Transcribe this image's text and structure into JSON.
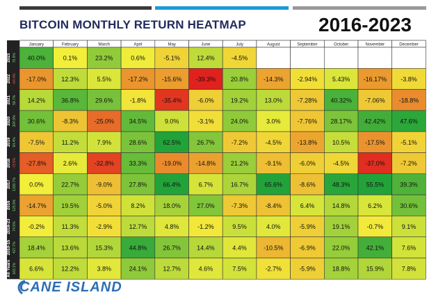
{
  "header": {
    "title": "BITCOIN MONTHLY RETURN HEATMAP",
    "years": "2016-2023"
  },
  "footer": {
    "brand": "CANE ISLAND"
  },
  "colors": {
    "bar_left": "#3a3a3a",
    "bar_mid": "#1f9ad6",
    "bar_right": "#9a9a9a",
    "cell_empty": "#ffffff"
  },
  "chart_data": {
    "type": "heatmap",
    "title": "BITCOIN MONTHLY RETURN HEATMAP",
    "subtitle": "2016-2023",
    "columns": [
      "January",
      "February",
      "March",
      "April",
      "May",
      "June",
      "July",
      "August",
      "September",
      "October",
      "November",
      "December"
    ],
    "rows": [
      {
        "label": "2023",
        "total": "76.9%",
        "values": [
          "40.0%",
          "0.1%",
          "23.2%",
          "0.6%",
          "-5.1%",
          "12.4%",
          "-4.5%",
          "",
          "",
          "",
          "",
          ""
        ],
        "nums": [
          40.0,
          0.1,
          23.2,
          0.6,
          -5.1,
          12.4,
          -4.5,
          null,
          null,
          null,
          null,
          null
        ]
      },
      {
        "label": "2022",
        "total": "-64.4%",
        "values": [
          "-17.0%",
          "12.3%",
          "5.5%",
          "-17.2%",
          "-15.6%",
          "-39.3%",
          "20.8%",
          "-14.3%",
          "-2.94%",
          "5.43%",
          "-16.17%",
          "-3.8%"
        ],
        "nums": [
          -17.0,
          12.3,
          5.5,
          -17.2,
          -15.6,
          -39.3,
          20.8,
          -14.3,
          -2.94,
          5.43,
          -16.17,
          -3.8
        ]
      },
      {
        "label": "2021",
        "total": "59.7%",
        "values": [
          "14.2%",
          "36.8%",
          "29.6%",
          "-1.8%",
          "-35.4%",
          "-6.0%",
          "19.2%",
          "13.0%",
          "-7.28%",
          "40.32%",
          "-7.06%",
          "-18.8%"
        ],
        "nums": [
          14.2,
          36.8,
          29.6,
          -1.8,
          -35.4,
          -6.0,
          19.2,
          13.0,
          -7.28,
          40.32,
          -7.06,
          -18.8
        ]
      },
      {
        "label": "2020",
        "total": "304.9%",
        "values": [
          "30.6%",
          "-8.3%",
          "-25.0%",
          "34.5%",
          "9.0%",
          "-3.1%",
          "24.0%",
          "3.0%",
          "-7.76%",
          "28.17%",
          "42.42%",
          "47.6%"
        ],
        "nums": [
          30.6,
          -8.3,
          -25.0,
          34.5,
          9.0,
          -3.1,
          24.0,
          3.0,
          -7.76,
          28.17,
          42.42,
          47.6
        ]
      },
      {
        "label": "2019",
        "total": "94.4%",
        "values": [
          "-7.5%",
          "11.2%",
          "7.9%",
          "28.6%",
          "62.5%",
          "26.7%",
          "-7.2%",
          "-4.5%",
          "-13.8%",
          "10.5%",
          "-17.5%",
          "-5.1%"
        ],
        "nums": [
          -7.5,
          11.2,
          7.9,
          28.6,
          62.5,
          26.7,
          -7.2,
          -4.5,
          -13.8,
          10.5,
          -17.5,
          -5.1
        ]
      },
      {
        "label": "2018",
        "total": "-73.5%",
        "values": [
          "-27.8%",
          "2.6%",
          "-32.8%",
          "33.3%",
          "-19.0%",
          "-14.8%",
          "21.2%",
          "-9.1%",
          "-6.0%",
          "-4.5%",
          "-37.0%",
          "-7.2%"
        ],
        "nums": [
          -27.8,
          2.6,
          -32.8,
          33.3,
          -19.0,
          -14.8,
          21.2,
          -9.1,
          -6.0,
          -4.5,
          -37.0,
          -7.2
        ]
      },
      {
        "label": "2017",
        "total": "1330.7%",
        "values": [
          "0.0%",
          "22.7%",
          "-9.0%",
          "27.8%",
          "66.4%",
          "6.7%",
          "16.7%",
          "65.6%",
          "-8.6%",
          "48.3%",
          "55.5%",
          "39.3%"
        ],
        "nums": [
          0.0,
          22.7,
          -9.0,
          27.8,
          66.4,
          6.7,
          16.7,
          65.6,
          -8.6,
          48.3,
          55.5,
          39.3
        ]
      },
      {
        "label": "2016",
        "total": "125.9%",
        "values": [
          "-14.7%",
          "19.5%",
          "-5.0%",
          "8.2%",
          "18.0%",
          "27.0%",
          "-7.3%",
          "-8.4%",
          "6.4%",
          "14.8%",
          "6.2%",
          "30.6%"
        ],
        "nums": [
          -14.7,
          19.5,
          -5.0,
          8.2,
          18.0,
          27.0,
          -7.3,
          -8.4,
          6.4,
          14.8,
          6.2,
          30.6
        ]
      },
      {
        "label": "2016-23",
        "total": "74.5%",
        "values": [
          "-0.2%",
          "11.3%",
          "-2.9%",
          "12.7%",
          "4.8%",
          "-1.2%",
          "9.5%",
          "4.0%",
          "-5.9%",
          "19.1%",
          "-0.7%",
          "9.1%"
        ],
        "nums": [
          -0.2,
          11.3,
          -2.9,
          12.7,
          4.8,
          -1.2,
          9.5,
          4.0,
          -5.9,
          19.1,
          -0.7,
          9.1
        ]
      },
      {
        "label": "2010-15",
        "total": "427.7%",
        "values": [
          "18.4%",
          "13.6%",
          "15.3%",
          "44.8%",
          "26.7%",
          "14.4%",
          "4.4%",
          "-10.5%",
          "-6.9%",
          "22.0%",
          "42.1%",
          "7.6%"
        ],
        "nums": [
          18.4,
          13.6,
          15.3,
          44.8,
          26.7,
          14.4,
          4.4,
          -10.5,
          -6.9,
          22.0,
          42.1,
          7.6
        ]
      },
      {
        "label": "All Years",
        "total": "163.1%",
        "values": [
          "6.6%",
          "12.2%",
          "3.8%",
          "24.1%",
          "12.7%",
          "4.6%",
          "7.5%",
          "-2.7%",
          "-5.9%",
          "18.8%",
          "15.9%",
          "7.8%"
        ],
        "nums": [
          6.6,
          12.2,
          3.8,
          24.1,
          12.7,
          4.6,
          7.5,
          -2.7,
          -5.9,
          18.8,
          15.9,
          7.8
        ]
      }
    ],
    "color_scale": {
      "min_color": "#e01e1e",
      "mid_color": "#f2ee3a",
      "max_color": "#22a33a",
      "min": -40,
      "max": 50
    }
  }
}
